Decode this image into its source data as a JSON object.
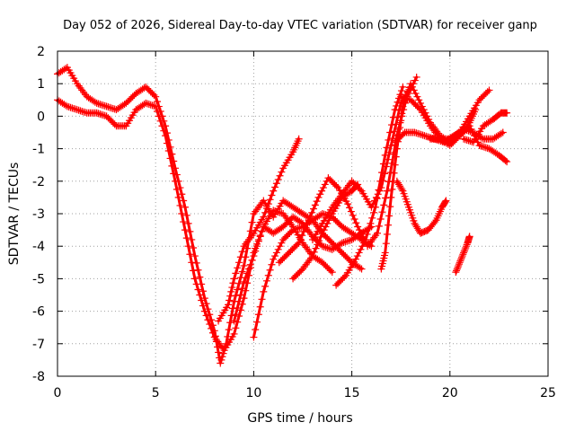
{
  "chart_data": {
    "type": "scatter",
    "title": "Day 052 of 2026, Sidereal Day-to-day VTEC variation (SDTVAR) for receiver ganp",
    "xlabel": "GPS time / hours",
    "ylabel": "SDTVAR / TECUs",
    "xlim": [
      0,
      25
    ],
    "ylim": [
      -8,
      2
    ],
    "xticks": [
      0,
      5,
      10,
      15,
      20,
      25
    ],
    "yticks": [
      -8,
      -7,
      -6,
      -5,
      -4,
      -3,
      -2,
      -1,
      0,
      1,
      2
    ],
    "grid": true,
    "marker": "+",
    "color": "#ff0000",
    "series": [
      {
        "name": "track-1",
        "points": [
          [
            0.0,
            1.3
          ],
          [
            0.5,
            1.5
          ],
          [
            1.0,
            1.0
          ],
          [
            1.5,
            0.6
          ],
          [
            2.0,
            0.4
          ],
          [
            2.5,
            0.3
          ],
          [
            3.0,
            0.2
          ],
          [
            3.5,
            0.4
          ],
          [
            4.0,
            0.7
          ],
          [
            4.5,
            0.9
          ],
          [
            5.0,
            0.6
          ],
          [
            5.5,
            -0.3
          ],
          [
            6.0,
            -1.6
          ],
          [
            6.5,
            -2.8
          ],
          [
            7.0,
            -4.3
          ],
          [
            7.5,
            -5.6
          ],
          [
            8.0,
            -6.6
          ],
          [
            8.3,
            -7.6
          ],
          [
            8.6,
            -7.0
          ],
          [
            9.0,
            -5.7
          ],
          [
            9.5,
            -4.6
          ],
          [
            10.0,
            -3.0
          ],
          [
            10.5,
            -2.6
          ],
          [
            11.0,
            -3.1
          ],
          [
            11.5,
            -2.6
          ],
          [
            12.0,
            -2.8
          ],
          [
            12.5,
            -3.0
          ],
          [
            13.0,
            -3.2
          ],
          [
            13.5,
            -3.6
          ],
          [
            14.0,
            -3.9
          ],
          [
            14.5,
            -4.2
          ],
          [
            15.0,
            -4.5
          ],
          [
            15.5,
            -4.7
          ]
        ]
      },
      {
        "name": "track-2",
        "points": [
          [
            0.0,
            0.5
          ],
          [
            0.5,
            0.3
          ],
          [
            1.0,
            0.2
          ],
          [
            1.5,
            0.1
          ],
          [
            2.0,
            0.1
          ],
          [
            2.5,
            0.0
          ],
          [
            3.0,
            -0.3
          ],
          [
            3.5,
            -0.3
          ],
          [
            4.0,
            0.2
          ],
          [
            4.5,
            0.4
          ],
          [
            5.0,
            0.3
          ],
          [
            5.5,
            -0.6
          ],
          [
            6.0,
            -2.0
          ],
          [
            6.5,
            -3.5
          ],
          [
            7.0,
            -5.0
          ],
          [
            7.5,
            -6.0
          ],
          [
            8.0,
            -6.8
          ],
          [
            8.5,
            -7.2
          ],
          [
            9.0,
            -6.7
          ],
          [
            9.5,
            -5.6
          ],
          [
            10.0,
            -4.2
          ],
          [
            10.5,
            -3.4
          ],
          [
            11.0,
            -3.6
          ],
          [
            11.5,
            -3.4
          ],
          [
            12.0,
            -3.1
          ],
          [
            12.5,
            -3.3
          ],
          [
            13.0,
            -3.7
          ],
          [
            13.5,
            -4.0
          ],
          [
            14.0,
            -4.1
          ],
          [
            14.5,
            -3.9
          ],
          [
            15.0,
            -3.8
          ],
          [
            15.5,
            -3.6
          ],
          [
            16.0,
            -3.4
          ]
        ]
      },
      {
        "name": "track-3",
        "points": [
          [
            8.2,
            -6.3
          ],
          [
            8.7,
            -5.8
          ],
          [
            9.0,
            -5.0
          ],
          [
            9.5,
            -4.0
          ],
          [
            10.0,
            -3.6
          ],
          [
            10.5,
            -3.1
          ],
          [
            11.0,
            -2.3
          ],
          [
            11.5,
            -1.6
          ],
          [
            12.0,
            -1.1
          ],
          [
            12.3,
            -0.7
          ]
        ]
      },
      {
        "name": "track-4",
        "points": [
          [
            9.0,
            -6.3
          ],
          [
            9.5,
            -5.1
          ],
          [
            10.0,
            -4.3
          ],
          [
            10.5,
            -3.4
          ],
          [
            11.0,
            -2.9
          ],
          [
            11.5,
            -3.0
          ],
          [
            12.0,
            -3.4
          ],
          [
            12.5,
            -3.9
          ],
          [
            13.0,
            -4.3
          ],
          [
            13.5,
            -4.5
          ],
          [
            14.0,
            -4.8
          ]
        ]
      },
      {
        "name": "track-5",
        "points": [
          [
            10.0,
            -6.8
          ],
          [
            10.5,
            -5.4
          ],
          [
            11.0,
            -4.4
          ],
          [
            11.5,
            -3.8
          ],
          [
            12.0,
            -3.5
          ],
          [
            12.5,
            -3.4
          ],
          [
            13.0,
            -3.2
          ],
          [
            13.5,
            -3.0
          ],
          [
            14.0,
            -3.1
          ],
          [
            14.5,
            -3.4
          ],
          [
            15.0,
            -3.6
          ],
          [
            15.5,
            -3.8
          ],
          [
            16.0,
            -4.0
          ]
        ]
      },
      {
        "name": "track-6",
        "points": [
          [
            11.3,
            -4.5
          ],
          [
            11.8,
            -4.2
          ],
          [
            12.3,
            -3.9
          ],
          [
            12.8,
            -3.2
          ],
          [
            13.3,
            -2.5
          ],
          [
            13.8,
            -1.9
          ],
          [
            14.3,
            -2.2
          ],
          [
            14.8,
            -2.7
          ],
          [
            15.3,
            -3.4
          ],
          [
            15.8,
            -4.0
          ],
          [
            16.3,
            -3.6
          ],
          [
            16.8,
            -2.3
          ],
          [
            17.3,
            -0.6
          ],
          [
            17.8,
            0.6
          ],
          [
            18.3,
            1.2
          ]
        ]
      },
      {
        "name": "track-7",
        "points": [
          [
            12.0,
            -5.0
          ],
          [
            12.5,
            -4.7
          ],
          [
            13.0,
            -4.3
          ],
          [
            13.5,
            -3.6
          ],
          [
            14.0,
            -3.0
          ],
          [
            14.5,
            -2.5
          ],
          [
            15.0,
            -2.3
          ],
          [
            15.3,
            -2.1
          ]
        ]
      },
      {
        "name": "track-8",
        "points": [
          [
            13.0,
            -3.8
          ],
          [
            13.5,
            -3.3
          ],
          [
            14.0,
            -2.8
          ],
          [
            14.5,
            -2.4
          ],
          [
            15.0,
            -2.0
          ],
          [
            15.5,
            -2.3
          ],
          [
            16.0,
            -2.8
          ],
          [
            16.5,
            -2.2
          ],
          [
            17.0,
            -0.9
          ],
          [
            17.5,
            0.4
          ],
          [
            18.0,
            0.9
          ]
        ]
      },
      {
        "name": "track-9",
        "points": [
          [
            14.2,
            -5.2
          ],
          [
            14.7,
            -4.9
          ],
          [
            15.2,
            -4.4
          ],
          [
            15.7,
            -3.8
          ],
          [
            16.2,
            -2.8
          ],
          [
            16.7,
            -1.2
          ],
          [
            17.2,
            0.2
          ],
          [
            17.6,
            0.9
          ]
        ]
      },
      {
        "name": "track-10",
        "points": [
          [
            16.5,
            -4.7
          ],
          [
            16.7,
            -4.2
          ],
          [
            17.0,
            -2.5
          ],
          [
            17.3,
            -1.0
          ],
          [
            17.6,
            0.3
          ],
          [
            18.0,
            1.0
          ],
          [
            18.5,
            0.4
          ],
          [
            19.0,
            -0.2
          ],
          [
            19.5,
            -0.6
          ],
          [
            20.0,
            -0.8
          ],
          [
            20.5,
            -0.6
          ],
          [
            21.0,
            -0.3
          ],
          [
            21.5,
            -0.9
          ],
          [
            22.0,
            -1.0
          ],
          [
            22.5,
            -1.2
          ],
          [
            22.9,
            -1.4
          ]
        ]
      },
      {
        "name": "track-11",
        "points": [
          [
            17.5,
            0.6
          ],
          [
            18.0,
            0.5
          ],
          [
            18.5,
            0.2
          ],
          [
            19.0,
            -0.3
          ],
          [
            19.5,
            -0.7
          ],
          [
            20.0,
            -0.7
          ],
          [
            20.5,
            -0.5
          ],
          [
            21.0,
            0.0
          ],
          [
            21.5,
            0.5
          ],
          [
            22.0,
            0.8
          ]
        ]
      },
      {
        "name": "track-12",
        "points": [
          [
            17.2,
            -0.8
          ],
          [
            17.7,
            -0.5
          ],
          [
            18.2,
            -0.5
          ],
          [
            18.7,
            -0.6
          ],
          [
            19.2,
            -0.7
          ],
          [
            19.7,
            -0.8
          ],
          [
            20.2,
            -0.6
          ],
          [
            20.7,
            -0.4
          ],
          [
            21.2,
            -0.5
          ],
          [
            21.7,
            -0.7
          ],
          [
            22.2,
            -0.7
          ],
          [
            22.7,
            -0.5
          ]
        ]
      },
      {
        "name": "track-13",
        "points": [
          [
            19.0,
            -0.7
          ],
          [
            19.5,
            -0.7
          ],
          [
            20.0,
            -0.9
          ],
          [
            20.5,
            -0.6
          ],
          [
            21.0,
            -0.2
          ],
          [
            21.3,
            0.2
          ]
        ]
      },
      {
        "name": "track-14",
        "points": [
          [
            17.3,
            -2.0
          ],
          [
            17.6,
            -2.3
          ],
          [
            17.9,
            -2.8
          ],
          [
            18.2,
            -3.3
          ],
          [
            18.5,
            -3.6
          ],
          [
            18.9,
            -3.5
          ],
          [
            19.3,
            -3.2
          ],
          [
            19.6,
            -2.8
          ],
          [
            19.8,
            -2.6
          ]
        ]
      },
      {
        "name": "track-15",
        "points": [
          [
            20.3,
            -4.8
          ],
          [
            20.5,
            -4.5
          ],
          [
            20.7,
            -4.2
          ],
          [
            20.9,
            -3.9
          ],
          [
            21.0,
            -3.7
          ]
        ]
      },
      {
        "name": "track-16",
        "points": [
          [
            20.7,
            -0.7
          ],
          [
            21.2,
            -0.8
          ],
          [
            21.7,
            -0.3
          ],
          [
            22.2,
            -0.1
          ],
          [
            22.6,
            0.1
          ],
          [
            22.9,
            0.1
          ]
        ]
      }
    ]
  }
}
